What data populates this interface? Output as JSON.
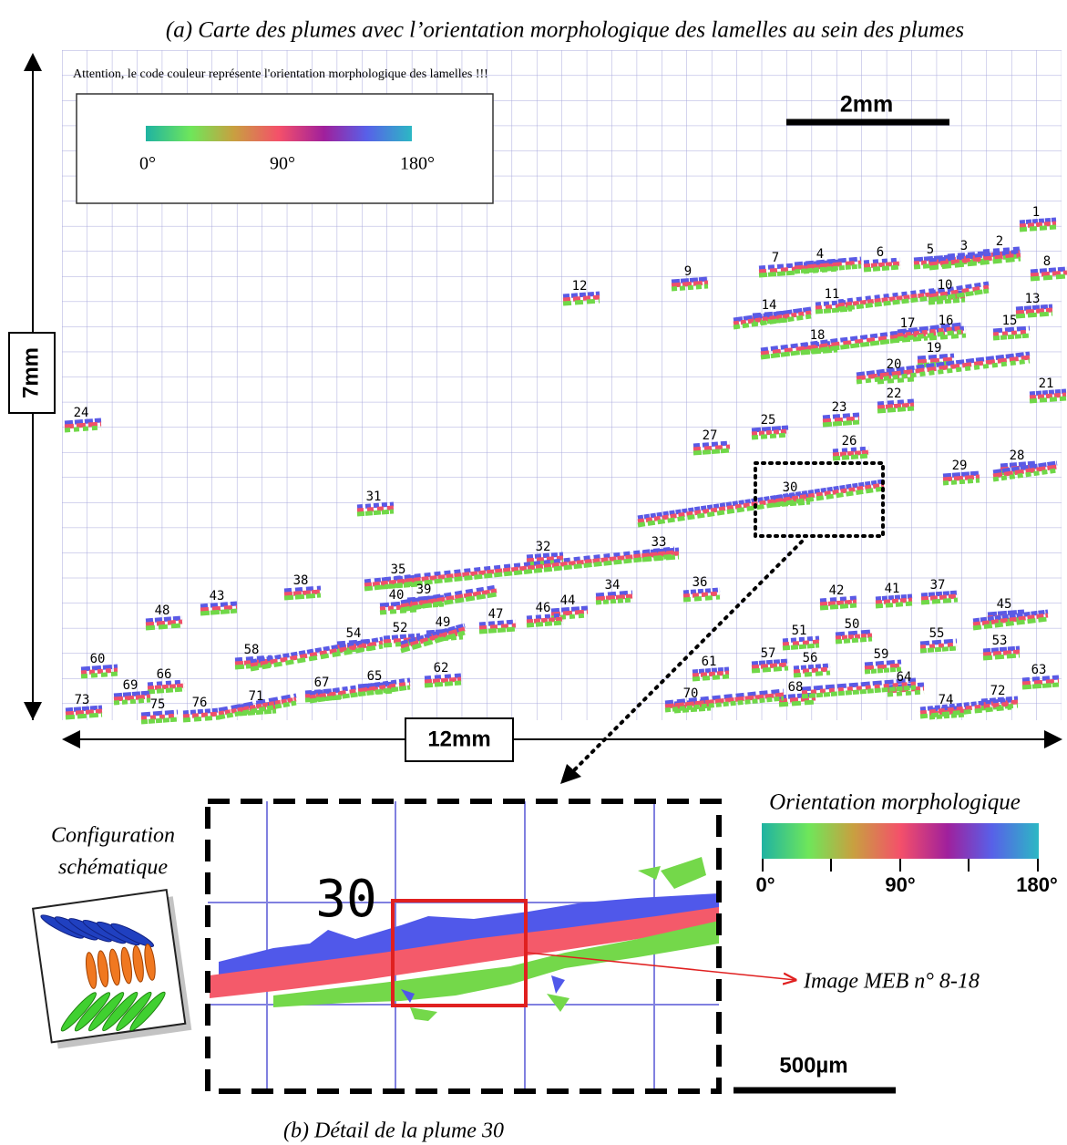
{
  "panel_a": {
    "title": "(a) Carte des plumes avec l’orientation morphologique des lamelles au sein des plumes",
    "note": "Attention, le code couleur représente l'orientation morphologique des lamelles !!!",
    "colorbar_labels": [
      "0°",
      "90°",
      "180°"
    ],
    "scale_bar": "2mm",
    "height_label": "7mm",
    "width_label": "12mm",
    "plume_labels": [
      "1",
      "2",
      "3",
      "4",
      "5",
      "6",
      "7",
      "8",
      "9",
      "10",
      "11",
      "12",
      "13",
      "14",
      "15",
      "16",
      "17",
      "18",
      "19",
      "20",
      "21",
      "22",
      "23",
      "24",
      "25",
      "26",
      "27",
      "28",
      "29",
      "30",
      "31",
      "32",
      "33",
      "34",
      "35",
      "36",
      "37",
      "38",
      "39",
      "40",
      "41",
      "42",
      "43",
      "44",
      "45",
      "46",
      "47",
      "48",
      "49",
      "50",
      "51",
      "52",
      "53",
      "54",
      "55",
      "56",
      "57",
      "58",
      "59",
      "60",
      "61",
      "62",
      "63",
      "64",
      "65",
      "66",
      "67",
      "68",
      "69",
      "70",
      "71",
      "72",
      "73",
      "74",
      "75",
      "76"
    ]
  },
  "panel_b": {
    "caption": "(b) Détail de la plume 30",
    "plume_label": "30",
    "colorbar_title": "Orientation morphologique",
    "colorbar_labels": [
      "0°",
      "90°",
      "180°"
    ],
    "scale_bar": "500µm",
    "schematic_label": [
      "Configuration",
      "schématique"
    ],
    "image_label": "Image MEB n° 8-18"
  }
}
